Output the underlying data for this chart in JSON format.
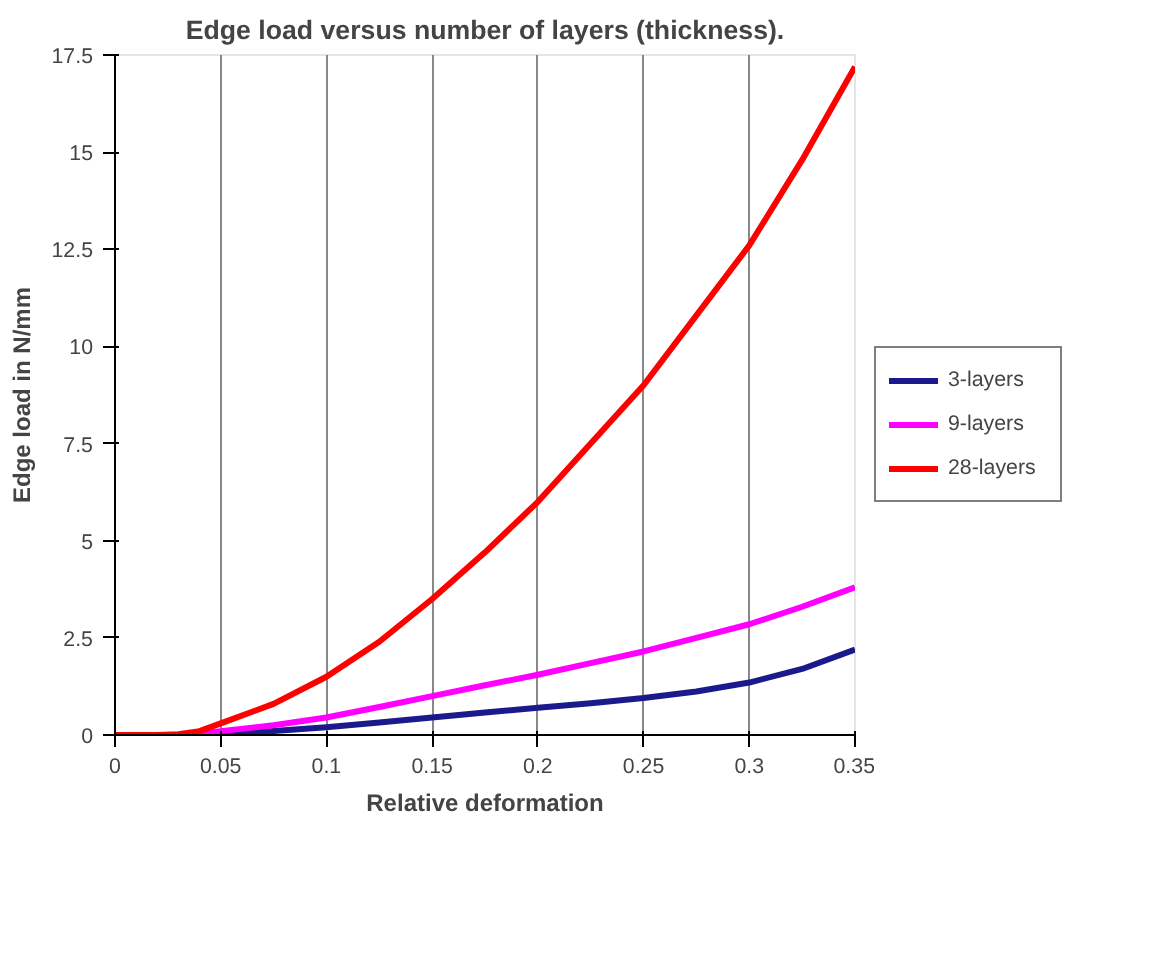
{
  "chart_data": {
    "type": "line",
    "title": "Edge load versus number of layers (thickness).",
    "xlabel": "Relative deformation",
    "ylabel": "Edge load in N/mm",
    "x": [
      0,
      0.02,
      0.03,
      0.04,
      0.05,
      0.075,
      0.1,
      0.125,
      0.15,
      0.175,
      0.2,
      0.225,
      0.25,
      0.275,
      0.3,
      0.325,
      0.35
    ],
    "series": [
      {
        "name": "3-layers",
        "color": "#1a1a8c",
        "values": [
          null,
          null,
          null,
          0,
          0.02,
          0.1,
          0.2,
          0.32,
          0.45,
          0.58,
          0.7,
          0.82,
          0.95,
          1.12,
          1.35,
          1.7,
          2.2
        ]
      },
      {
        "name": "9-layers",
        "color": "#ff00ff",
        "values": [
          null,
          null,
          0,
          0.03,
          0.1,
          0.25,
          0.45,
          0.72,
          1.0,
          1.28,
          1.55,
          1.85,
          2.15,
          2.5,
          2.85,
          3.3,
          3.8
        ]
      },
      {
        "name": "28-layers",
        "color": "#ff0000",
        "values": [
          0,
          0,
          0.02,
          0.1,
          0.3,
          0.8,
          1.5,
          2.4,
          3.5,
          4.7,
          6.0,
          7.5,
          9.0,
          10.8,
          12.6,
          14.8,
          17.2
        ]
      }
    ],
    "xlim": [
      0,
      0.35
    ],
    "ylim": [
      0,
      17.5
    ],
    "xticks": [
      0,
      0.05,
      0.1,
      0.15,
      0.2,
      0.25,
      0.3,
      0.35
    ],
    "yticks": [
      0,
      2.5,
      5,
      7.5,
      10,
      12.5,
      15,
      17.5
    ],
    "grid": "x",
    "legend": "right",
    "marker": "none",
    "line_style": "solid"
  }
}
